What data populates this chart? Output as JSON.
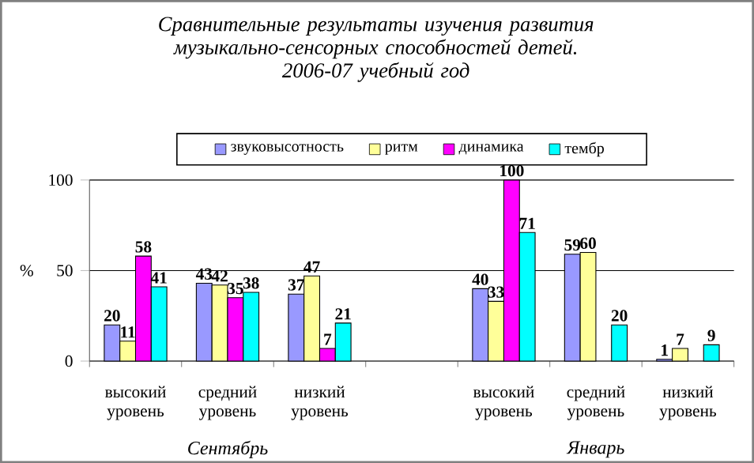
{
  "chart_data": {
    "type": "bar",
    "title": "Сравнительные результаты изучения развития музыкально-сенсорных способностей детей.",
    "subtitle": "2006-07 учебный год",
    "ylabel": "%",
    "categories": [
      "высокий уровень",
      "средний уровень",
      "низкий уровень",
      null,
      "высокий уровень",
      "средний уровень",
      "низкий уровень"
    ],
    "series": [
      {
        "name": "звуковысотность",
        "color": "#9999ff",
        "values": [
          20,
          43,
          37,
          null,
          40,
          59,
          1
        ]
      },
      {
        "name": "ритм",
        "color": "#ffff99",
        "values": [
          11,
          42,
          47,
          null,
          33,
          60,
          7
        ]
      },
      {
        "name": "динамика",
        "color": "#ff00ff",
        "values": [
          58,
          35,
          7,
          null,
          100,
          null,
          null
        ]
      },
      {
        "name": "тембр",
        "color": "#00ffff",
        "values": [
          41,
          38,
          21,
          null,
          71,
          20,
          9
        ]
      }
    ],
    "ylim": [
      0,
      100
    ],
    "yticks": [
      0,
      50,
      100
    ],
    "grid": "y",
    "legend": "top",
    "data_labels": true,
    "annotations": [
      "Сентябрь",
      "Январь"
    ]
  }
}
